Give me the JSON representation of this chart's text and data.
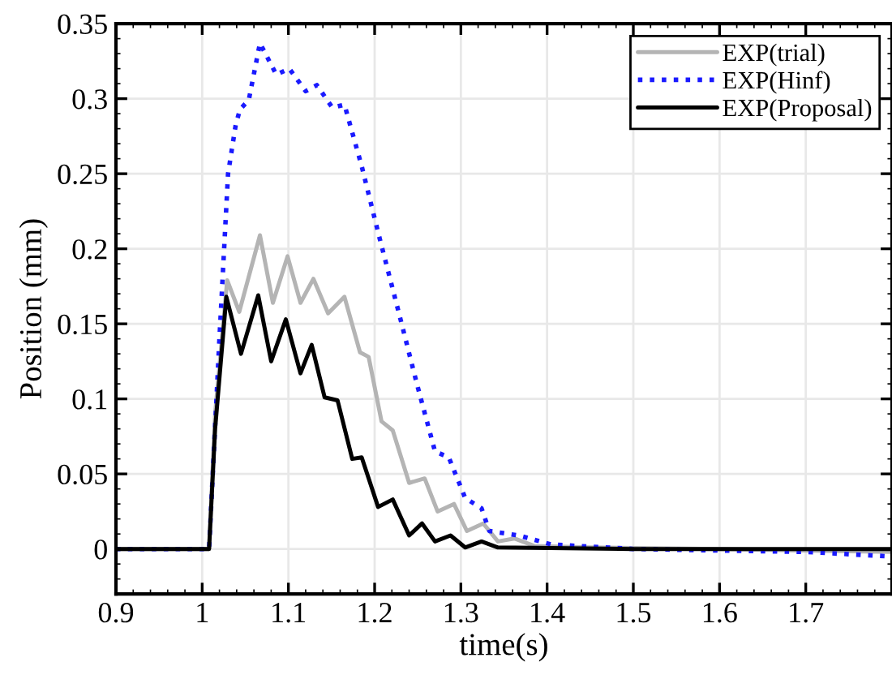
{
  "chart_data": {
    "type": "line",
    "xlabel": "time(s)",
    "ylabel": "Position (mm)",
    "xlim": [
      0.9,
      1.8
    ],
    "xticks": [
      0.9,
      1,
      1.1,
      1.2,
      1.3,
      1.4,
      1.5,
      1.6,
      1.7
    ],
    "ylim": [
      -0.03,
      0.35
    ],
    "yticks": [
      0,
      0.05,
      0.1,
      0.15,
      0.2,
      0.25,
      0.3,
      0.35
    ],
    "grid": true,
    "legend": "top right",
    "series": [
      {
        "name": "EXP(trial)",
        "color": "#b4b4b4",
        "line_style": "solid",
        "x": [
          0.9,
          1.008,
          1.015,
          1.029,
          1.043,
          1.067,
          1.082,
          1.099,
          1.114,
          1.129,
          1.146,
          1.165,
          1.183,
          1.193,
          1.208,
          1.221,
          1.24,
          1.258,
          1.273,
          1.292,
          1.307,
          1.326,
          1.343,
          1.362,
          1.385,
          1.45,
          1.6,
          1.8
        ],
        "values": [
          0,
          0,
          0.09,
          0.179,
          0.158,
          0.209,
          0.164,
          0.195,
          0.164,
          0.18,
          0.157,
          0.168,
          0.131,
          0.128,
          0.085,
          0.079,
          0.044,
          0.047,
          0.025,
          0.03,
          0.012,
          0.017,
          0.005,
          0.007,
          0.002,
          0.001,
          0,
          -0.002
        ]
      },
      {
        "name": "EXP(Hinf)",
        "color": "#1a1aff",
        "line_style": "dotted",
        "x": [
          0.9,
          1.008,
          1.02,
          1.03,
          1.039,
          1.044,
          1.054,
          1.067,
          1.086,
          1.101,
          1.12,
          1.133,
          1.151,
          1.165,
          1.185,
          1.204,
          1.23,
          1.249,
          1.27,
          1.286,
          1.305,
          1.324,
          1.333,
          1.367,
          1.405,
          1.5,
          1.7,
          1.8
        ],
        "values": [
          0,
          0,
          0.14,
          0.25,
          0.283,
          0.293,
          0.299,
          0.337,
          0.316,
          0.32,
          0.305,
          0.309,
          0.294,
          0.296,
          0.255,
          0.211,
          0.153,
          0.11,
          0.065,
          0.061,
          0.034,
          0.027,
          0.012,
          0.009,
          0.003,
          0,
          -0.002,
          -0.005
        ]
      },
      {
        "name": "EXP(Proposal)",
        "color": "#000000",
        "line_style": "solid",
        "x": [
          0.9,
          1.008,
          1.015,
          1.028,
          1.045,
          1.065,
          1.08,
          1.097,
          1.114,
          1.127,
          1.142,
          1.157,
          1.174,
          1.185,
          1.204,
          1.221,
          1.24,
          1.255,
          1.27,
          1.288,
          1.305,
          1.324,
          1.343,
          1.5,
          1.8
        ],
        "values": [
          0,
          0,
          0.08,
          0.168,
          0.13,
          0.169,
          0.125,
          0.153,
          0.117,
          0.136,
          0.101,
          0.099,
          0.06,
          0.061,
          0.028,
          0.033,
          0.009,
          0.017,
          0.005,
          0.009,
          0.001,
          0.005,
          0.001,
          0,
          0
        ]
      }
    ]
  }
}
